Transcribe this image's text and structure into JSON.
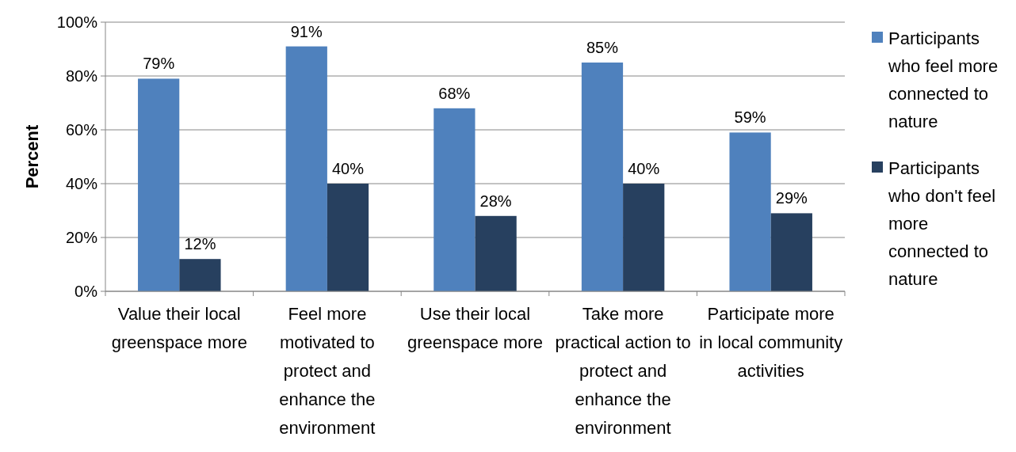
{
  "chart_data": {
    "type": "bar",
    "ylabel": "Percent",
    "categories": [
      "Value their local greenspace more",
      "Feel more motivated to protect and enhance the environment",
      "Use their local greenspace more",
      "Take more practical action to protect and enhance the environment",
      "Participate more in local community activities"
    ],
    "series": [
      {
        "name": "Participants who feel more connected to nature",
        "color": "#4f81bd",
        "values": [
          79,
          91,
          68,
          85,
          59
        ],
        "value_labels": [
          "79%",
          "91%",
          "68%",
          "85%",
          "59%"
        ]
      },
      {
        "name": "Participants who don't feel more connected to nature",
        "color": "#27405f",
        "values": [
          12,
          40,
          28,
          40,
          29
        ],
        "value_labels": [
          "12%",
          "40%",
          "28%",
          "40%",
          "29%"
        ]
      }
    ],
    "ylim": [
      0,
      100
    ],
    "yticks": [
      {
        "value": 0,
        "label": "0%"
      },
      {
        "value": 20,
        "label": "20%"
      },
      {
        "value": 40,
        "label": "40%"
      },
      {
        "value": 60,
        "label": "60%"
      },
      {
        "value": 80,
        "label": "80%"
      },
      {
        "value": 100,
        "label": "100%"
      }
    ],
    "grid": "y",
    "legend": "right"
  }
}
